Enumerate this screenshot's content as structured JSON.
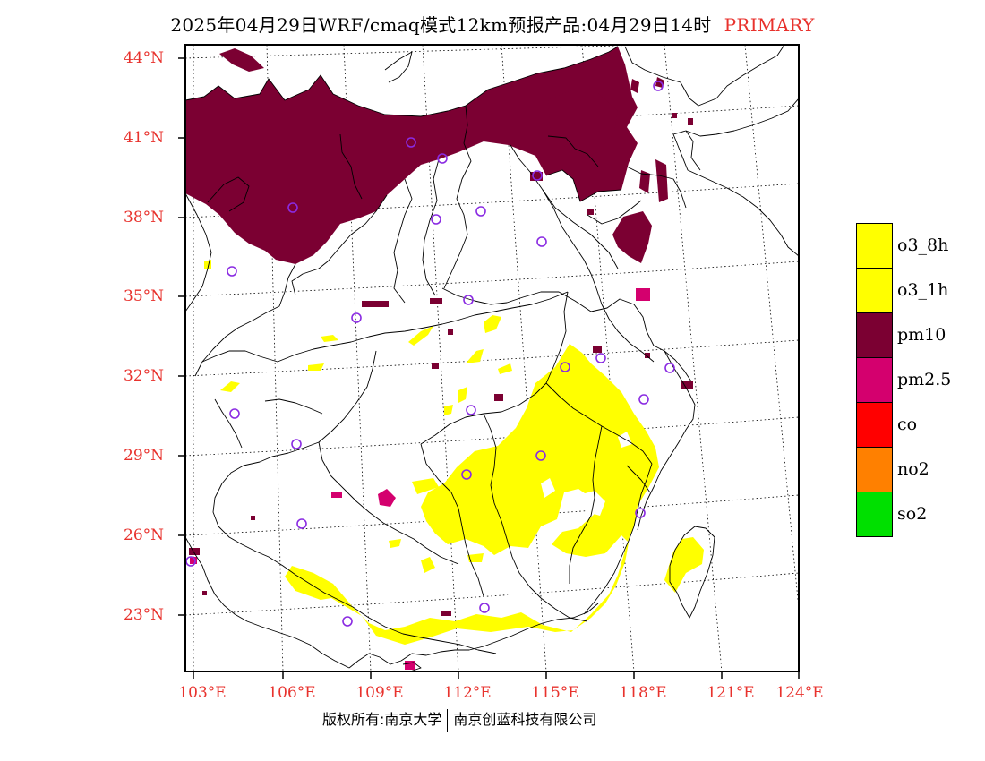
{
  "title": {
    "text": "2025年04月29日WRF/cmaq模式12km预报产品:04月29日14时",
    "tag": "PRIMARY"
  },
  "colors": {
    "label_red": "#e8322d",
    "o3": "#ffff00",
    "pm10": "#7b0032",
    "pm25": "#d4006e",
    "co": "#ff0000",
    "no2": "#ff8000",
    "so2": "#00e000",
    "station": "#8a2be2"
  },
  "axes": {
    "lat_labels": [
      "44°N",
      "41°N",
      "38°N",
      "35°N",
      "32°N",
      "29°N",
      "26°N",
      "23°N"
    ],
    "lon_labels": [
      "103°E",
      "106°E",
      "109°E",
      "112°E",
      "115°E",
      "118°E",
      "121°E",
      "124°E"
    ]
  },
  "legend": [
    {
      "label": "o3_8h",
      "color": "#ffff00"
    },
    {
      "label": "o3_1h",
      "color": "#ffff00"
    },
    {
      "label": "pm10",
      "color": "#7b0032"
    },
    {
      "label": "pm2.5",
      "color": "#d4006e"
    },
    {
      "label": "co",
      "color": "#ff0000"
    },
    {
      "label": "no2",
      "color": "#ff8000"
    },
    {
      "label": "so2",
      "color": "#00e000"
    }
  ],
  "footer": {
    "left": "版权所有:南京大学",
    "right": "南京创蓝科技有限公司"
  }
}
